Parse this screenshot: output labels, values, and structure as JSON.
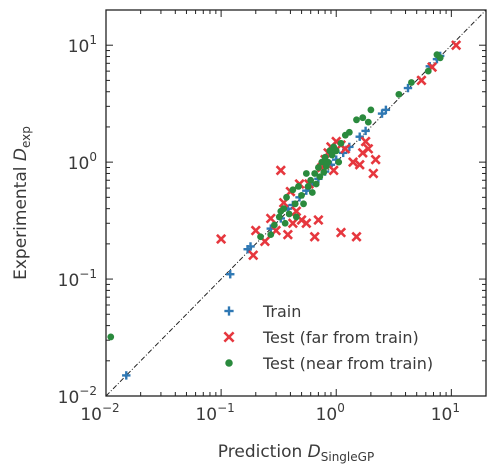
{
  "chart_data": {
    "type": "scatter",
    "xlabel": "Prediction",
    "xlabel_symbol": "D",
    "xlabel_sub": "SingleGP",
    "ylabel": "Experimental",
    "ylabel_symbol": "D",
    "ylabel_sub": "exp",
    "xscale": "log",
    "yscale": "log",
    "xlim": [
      0.01,
      20
    ],
    "ylim": [
      0.01,
      20
    ],
    "x_ticks": [
      {
        "value": 0.01,
        "base": "10",
        "exp": "−2"
      },
      {
        "value": 0.1,
        "base": "10",
        "exp": "−1"
      },
      {
        "value": 1,
        "base": "10",
        "exp": "0"
      },
      {
        "value": 10,
        "base": "10",
        "exp": "1"
      }
    ],
    "y_ticks": [
      {
        "value": 0.01,
        "base": "10",
        "exp": "−2"
      },
      {
        "value": 0.1,
        "base": "10",
        "exp": "−1"
      },
      {
        "value": 1,
        "base": "10",
        "exp": "0"
      },
      {
        "value": 10,
        "base": "10",
        "exp": "1"
      }
    ],
    "reference_line": "y = x",
    "grid": false,
    "legend_position": "bottom-right",
    "colors": {
      "train": "#2f78b4",
      "test_far": "#e6373e",
      "test_near": "#2a8a3d"
    },
    "series": [
      {
        "name": "Train",
        "marker": "plus",
        "points": [
          [
            0.015,
            0.015
          ],
          [
            0.12,
            0.11
          ],
          [
            0.17,
            0.18
          ],
          [
            0.18,
            0.19
          ],
          [
            0.27,
            0.27
          ],
          [
            0.33,
            0.33
          ],
          [
            0.38,
            0.4
          ],
          [
            0.42,
            0.43
          ],
          [
            0.48,
            0.5
          ],
          [
            0.55,
            0.57
          ],
          [
            0.62,
            0.66
          ],
          [
            0.7,
            0.72
          ],
          [
            0.8,
            0.83
          ],
          [
            0.9,
            0.95
          ],
          [
            1.0,
            1.05
          ],
          [
            1.15,
            1.2
          ],
          [
            1.3,
            1.35
          ],
          [
            1.6,
            1.65
          ],
          [
            1.8,
            1.85
          ],
          [
            2.5,
            2.6
          ],
          [
            2.7,
            2.8
          ],
          [
            4.2,
            4.3
          ],
          [
            6.5,
            6.6
          ],
          [
            7.5,
            7.6
          ],
          [
            8.0,
            8.1
          ]
        ]
      },
      {
        "name": "Test (far from train)",
        "marker": "x",
        "points": [
          [
            0.1,
            0.22
          ],
          [
            0.19,
            0.16
          ],
          [
            0.2,
            0.26
          ],
          [
            0.24,
            0.21
          ],
          [
            0.27,
            0.33
          ],
          [
            0.3,
            0.26
          ],
          [
            0.33,
            0.85
          ],
          [
            0.35,
            0.45
          ],
          [
            0.38,
            0.24
          ],
          [
            0.4,
            0.56
          ],
          [
            0.42,
            0.3
          ],
          [
            0.45,
            0.38
          ],
          [
            0.48,
            0.65
          ],
          [
            0.5,
            0.32
          ],
          [
            0.55,
            0.3
          ],
          [
            0.58,
            0.65
          ],
          [
            0.65,
            0.23
          ],
          [
            0.7,
            0.32
          ],
          [
            0.75,
            0.9
          ],
          [
            0.8,
            1.05
          ],
          [
            0.85,
            1.2
          ],
          [
            0.9,
            1.35
          ],
          [
            0.95,
            0.85
          ],
          [
            1.0,
            1.5
          ],
          [
            1.1,
            1.4
          ],
          [
            1.1,
            0.25
          ],
          [
            1.2,
            1.3
          ],
          [
            1.4,
            1.0
          ],
          [
            1.5,
            0.23
          ],
          [
            1.6,
            0.95
          ],
          [
            1.7,
            1.2
          ],
          [
            1.8,
            1.5
          ],
          [
            1.9,
            1.3
          ],
          [
            2.1,
            0.8
          ],
          [
            2.2,
            1.05
          ],
          [
            5.5,
            5.0
          ],
          [
            6.8,
            6.5
          ],
          [
            11,
            10
          ]
        ]
      },
      {
        "name": "Test (near from train)",
        "marker": "circle",
        "points": [
          [
            0.011,
            0.032
          ],
          [
            0.22,
            0.23
          ],
          [
            0.27,
            0.24
          ],
          [
            0.29,
            0.29
          ],
          [
            0.32,
            0.34
          ],
          [
            0.33,
            0.38
          ],
          [
            0.35,
            0.4
          ],
          [
            0.36,
            0.3
          ],
          [
            0.37,
            0.5
          ],
          [
            0.39,
            0.36
          ],
          [
            0.42,
            0.58
          ],
          [
            0.44,
            0.44
          ],
          [
            0.45,
            0.34
          ],
          [
            0.47,
            0.62
          ],
          [
            0.5,
            0.52
          ],
          [
            0.52,
            0.44
          ],
          [
            0.55,
            0.8
          ],
          [
            0.57,
            0.62
          ],
          [
            0.6,
            0.7
          ],
          [
            0.62,
            0.55
          ],
          [
            0.65,
            0.8
          ],
          [
            0.67,
            0.65
          ],
          [
            0.7,
            0.9
          ],
          [
            0.72,
            0.75
          ],
          [
            0.75,
            1.0
          ],
          [
            0.78,
            0.82
          ],
          [
            0.8,
            1.1
          ],
          [
            0.82,
            0.92
          ],
          [
            0.85,
            1.0
          ],
          [
            0.88,
            1.25
          ],
          [
            0.92,
            1.15
          ],
          [
            0.95,
            1.35
          ],
          [
            1.0,
            1.25
          ],
          [
            1.05,
            1.0
          ],
          [
            1.1,
            1.45
          ],
          [
            1.2,
            1.7
          ],
          [
            1.3,
            1.8
          ],
          [
            1.5,
            2.3
          ],
          [
            1.7,
            2.4
          ],
          [
            1.9,
            2.2
          ],
          [
            2.0,
            2.8
          ],
          [
            3.5,
            3.8
          ],
          [
            4.5,
            4.8
          ],
          [
            6.3,
            6.0
          ],
          [
            7.5,
            8.3
          ],
          [
            8.0,
            7.8
          ]
        ]
      }
    ]
  }
}
